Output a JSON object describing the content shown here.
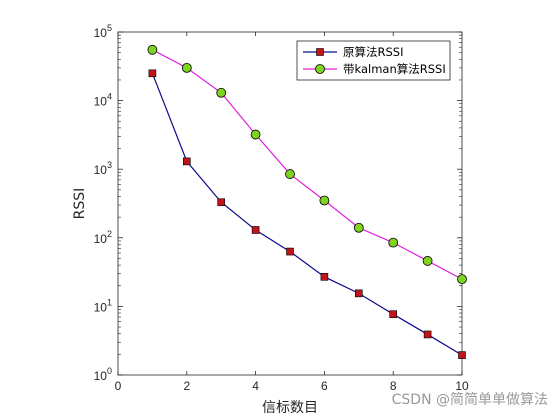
{
  "chart_data": {
    "type": "line",
    "xlabel": "信标数目",
    "ylabel": "RSSI",
    "xlim": [
      0,
      10
    ],
    "ylim": [
      1,
      100000
    ],
    "y_scale": "log",
    "x_ticks": [
      "0",
      "2",
      "4",
      "6",
      "8",
      "10"
    ],
    "y_ticks": [
      {
        "base": "10",
        "exp": "0"
      },
      {
        "base": "10",
        "exp": "1"
      },
      {
        "base": "10",
        "exp": "2"
      },
      {
        "base": "10",
        "exp": "3"
      },
      {
        "base": "10",
        "exp": "4"
      },
      {
        "base": "10",
        "exp": "5"
      }
    ],
    "grid": false,
    "legend_position": "top-right",
    "x": [
      1,
      2,
      3,
      4,
      5,
      6,
      7,
      8,
      9,
      10
    ],
    "series": [
      {
        "name": "原算法RSSI",
        "color": "#0b0b8a",
        "marker": "square",
        "marker_color": "#c0141c",
        "values": [
          25000,
          1300,
          330,
          130,
          63,
          27,
          15.5,
          7.7,
          3.9,
          1.95
        ]
      },
      {
        "name": "带kalman算法RSSI",
        "color": "#e020e0",
        "marker": "circle",
        "marker_color": "#7fd321",
        "values": [
          55000,
          30000,
          13000,
          3200,
          850,
          350,
          140,
          85,
          46,
          25
        ]
      }
    ]
  },
  "watermark": "CSDN @简简单单做算法"
}
